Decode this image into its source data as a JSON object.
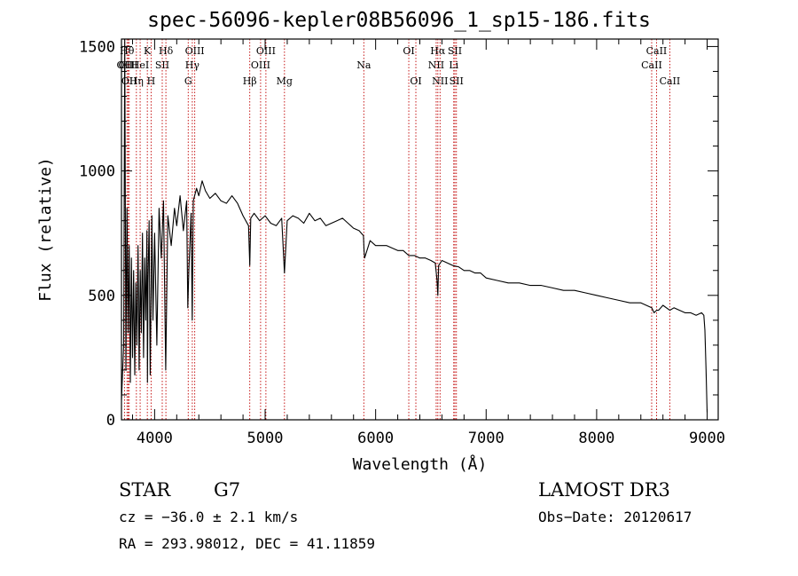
{
  "chart_data": {
    "type": "line",
    "title": "spec-56096-kepler08B56096_1_sp15-186.fits",
    "xlabel": "Wavelength (Å)",
    "ylabel": "Flux (relative)",
    "xlim": [
      3700,
      9100
    ],
    "ylim": [
      0,
      1530
    ],
    "x_ticks": [
      4000,
      5000,
      6000,
      7000,
      8000,
      9000
    ],
    "x_tick_labels": [
      "4000",
      "5000",
      "6000",
      "7000",
      "8000",
      "9000"
    ],
    "y_ticks": [
      0,
      500,
      1000,
      1500
    ],
    "y_tick_labels": [
      "0",
      "500",
      "1000",
      "1500"
    ],
    "grid": false,
    "series": [
      {
        "name": "flux",
        "x": [
          3700,
          3720,
          3730,
          3740,
          3750,
          3760,
          3770,
          3780,
          3790,
          3800,
          3810,
          3820,
          3830,
          3840,
          3850,
          3860,
          3870,
          3880,
          3890,
          3900,
          3910,
          3920,
          3930,
          3935,
          3940,
          3950,
          3960,
          3968,
          3975,
          3985,
          4000,
          4020,
          4040,
          4060,
          4080,
          4100,
          4120,
          4150,
          4180,
          4200,
          4230,
          4260,
          4290,
          4300,
          4310,
          4330,
          4340,
          4350,
          4380,
          4400,
          4430,
          4460,
          4500,
          4550,
          4600,
          4650,
          4700,
          4750,
          4800,
          4850,
          4861,
          4870,
          4900,
          4950,
          5000,
          5050,
          5100,
          5150,
          5175,
          5200,
          5250,
          5300,
          5350,
          5400,
          5450,
          5500,
          5550,
          5600,
          5650,
          5700,
          5750,
          5800,
          5850,
          5890,
          5895,
          5900,
          5950,
          6000,
          6050,
          6100,
          6150,
          6200,
          6250,
          6300,
          6350,
          6400,
          6450,
          6500,
          6540,
          6556,
          6563,
          6570,
          6600,
          6650,
          6700,
          6750,
          6800,
          6850,
          6900,
          6950,
          7000,
          7100,
          7200,
          7300,
          7400,
          7500,
          7600,
          7700,
          7800,
          7900,
          8000,
          8100,
          8200,
          8300,
          8400,
          8498,
          8520,
          8542,
          8560,
          8600,
          8662,
          8700,
          8750,
          8800,
          8850,
          8900,
          8950,
          8970,
          8980,
          8990,
          9000
        ],
        "y": [
          80,
          300,
          1530,
          200,
          850,
          350,
          700,
          150,
          650,
          250,
          600,
          180,
          550,
          300,
          700,
          200,
          600,
          350,
          750,
          250,
          650,
          400,
          760,
          150,
          550,
          800,
          180,
          500,
          820,
          400,
          750,
          300,
          850,
          650,
          880,
          200,
          820,
          700,
          850,
          780,
          900,
          760,
          880,
          450,
          600,
          830,
          400,
          880,
          930,
          900,
          960,
          920,
          890,
          910,
          880,
          870,
          900,
          870,
          820,
          780,
          620,
          810,
          830,
          800,
          820,
          790,
          780,
          810,
          590,
          800,
          820,
          810,
          790,
          830,
          800,
          810,
          780,
          790,
          800,
          810,
          790,
          770,
          760,
          740,
          680,
          650,
          720,
          700,
          700,
          700,
          690,
          680,
          680,
          660,
          660,
          650,
          650,
          640,
          630,
          560,
          500,
          620,
          640,
          630,
          620,
          615,
          600,
          600,
          590,
          590,
          570,
          560,
          550,
          550,
          540,
          540,
          530,
          520,
          520,
          510,
          500,
          490,
          480,
          470,
          470,
          450,
          430,
          440,
          440,
          460,
          440,
          450,
          440,
          430,
          430,
          420,
          430,
          420,
          360,
          200,
          30
        ]
      }
    ],
    "line_labels": [
      {
        "wave": 3727,
        "label": "OII",
        "row": 2
      },
      {
        "wave": 3750,
        "label": "Hθ",
        "row": 1
      },
      {
        "wave": 3760,
        "label": "OIII",
        "row": 2
      },
      {
        "wave": 3770,
        "label": "OII",
        "row": 3
      },
      {
        "wave": 3835,
        "label": "Hη",
        "row": 3
      },
      {
        "wave": 3869,
        "label": "HeI",
        "row": 2
      },
      {
        "wave": 3934,
        "label": "K",
        "row": 1
      },
      {
        "wave": 3968,
        "label": "H",
        "row": 3
      },
      {
        "wave": 4069,
        "label": "SII",
        "row": 2
      },
      {
        "wave": 4102,
        "label": "Hδ",
        "row": 1
      },
      {
        "wave": 4304,
        "label": "G",
        "row": 3
      },
      {
        "wave": 4341,
        "label": "Hγ",
        "row": 2
      },
      {
        "wave": 4363,
        "label": "OIII",
        "row": 1
      },
      {
        "wave": 4861,
        "label": "Hβ",
        "row": 3
      },
      {
        "wave": 4959,
        "label": "OIII",
        "row": 2
      },
      {
        "wave": 5007,
        "label": "OIII",
        "row": 1
      },
      {
        "wave": 5175,
        "label": "Mg",
        "row": 3
      },
      {
        "wave": 5893,
        "label": "Na",
        "row": 2
      },
      {
        "wave": 6300,
        "label": "OI",
        "row": 1
      },
      {
        "wave": 6364,
        "label": "OI",
        "row": 3
      },
      {
        "wave": 6548,
        "label": "NII",
        "row": 2
      },
      {
        "wave": 6563,
        "label": "Hα",
        "row": 1
      },
      {
        "wave": 6583,
        "label": "NII",
        "row": 3
      },
      {
        "wave": 6707,
        "label": "Li",
        "row": 2
      },
      {
        "wave": 6717,
        "label": "SII",
        "row": 1
      },
      {
        "wave": 6731,
        "label": "SII",
        "row": 3
      },
      {
        "wave": 8498,
        "label": "CaII",
        "row": 2
      },
      {
        "wave": 8542,
        "label": "CaII",
        "row": 1
      },
      {
        "wave": 8662,
        "label": "CaII",
        "row": 3
      }
    ]
  },
  "info": {
    "object_class": "STAR",
    "subclass": "G7",
    "survey": "LAMOST DR3",
    "cz": "cz = −36.0 ± 2.1 km/s",
    "obs_date": "Obs−Date: 20120617",
    "coords": "RA = 293.98012, DEC =  41.11859"
  },
  "colors": {
    "spectrum": "#000000",
    "line_markers": "#c00000",
    "axes": "#000000"
  }
}
